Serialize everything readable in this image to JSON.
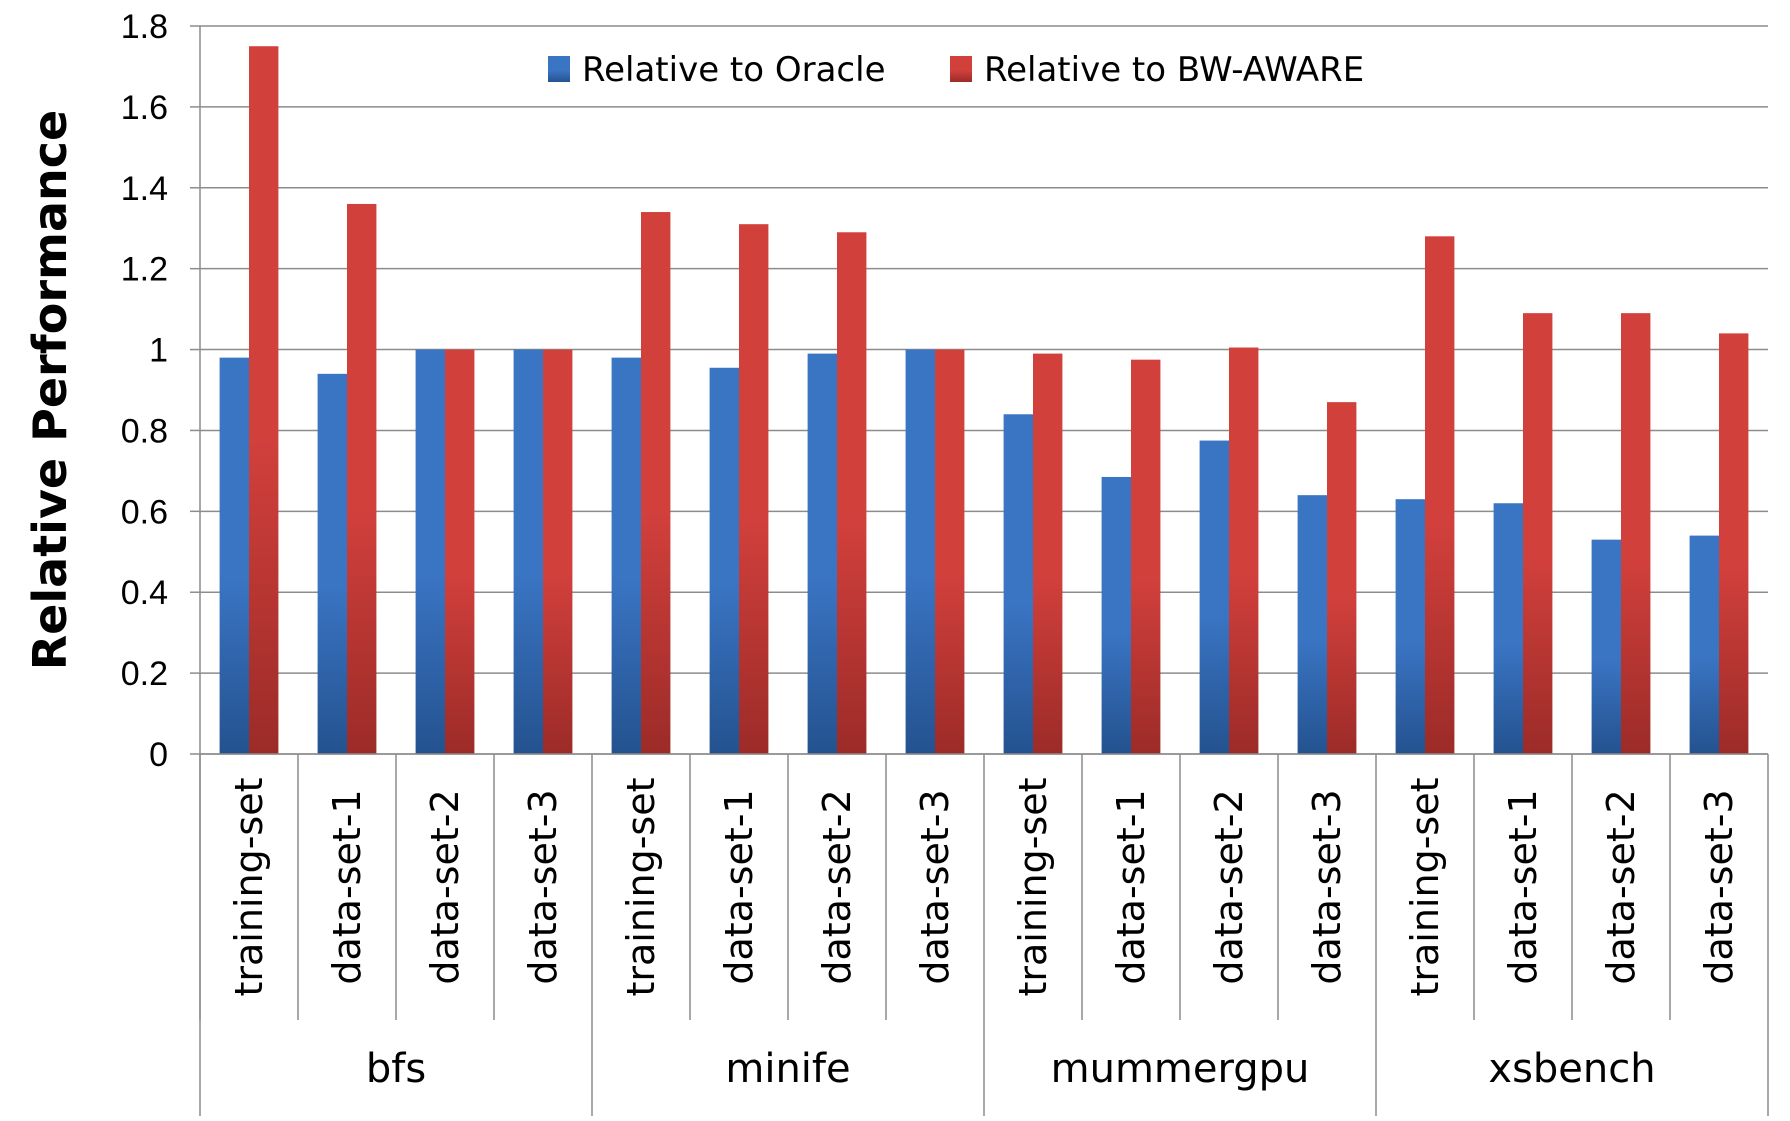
{
  "chart_data": {
    "type": "bar",
    "title": "",
    "ylabel": "Relative Performance",
    "xlabel": "",
    "ylim": [
      0,
      1.8
    ],
    "yticks": [
      0,
      0.2,
      0.4,
      0.6,
      0.8,
      1,
      1.2,
      1.4,
      1.6,
      1.8
    ],
    "ytick_labels": [
      "0",
      "0.2",
      "0.4",
      "0.6",
      "0.8",
      "1",
      "1.2",
      "1.4",
      "1.6",
      "1.8"
    ],
    "grid": true,
    "legend_position": "top",
    "groups": [
      {
        "name": "bfs",
        "categories": [
          "training-set",
          "data-set-1",
          "data-set-2",
          "data-set-3"
        ]
      },
      {
        "name": "minife",
        "categories": [
          "training-set",
          "data-set-1",
          "data-set-2",
          "data-set-3"
        ]
      },
      {
        "name": "mummergpu",
        "categories": [
          "training-set",
          "data-set-1",
          "data-set-2",
          "data-set-3"
        ]
      },
      {
        "name": "xsbench",
        "categories": [
          "training-set",
          "data-set-1",
          "data-set-2",
          "data-set-3"
        ]
      }
    ],
    "series": [
      {
        "name": "Relative to Oracle",
        "color": "#3a75c4",
        "color_dark": "#24528f",
        "values": [
          0.98,
          0.94,
          1.0,
          1.0,
          0.98,
          0.955,
          0.99,
          1.0,
          0.84,
          0.685,
          0.775,
          0.64,
          0.63,
          0.62,
          0.53,
          0.54
        ]
      },
      {
        "name": "Relative to BW-AWARE",
        "color": "#d2403c",
        "color_dark": "#9c2b28",
        "values": [
          1.75,
          1.36,
          1.0,
          1.0,
          1.34,
          1.31,
          1.29,
          1.0,
          0.99,
          0.975,
          1.005,
          0.87,
          1.28,
          1.09,
          1.09,
          1.04
        ]
      }
    ]
  }
}
